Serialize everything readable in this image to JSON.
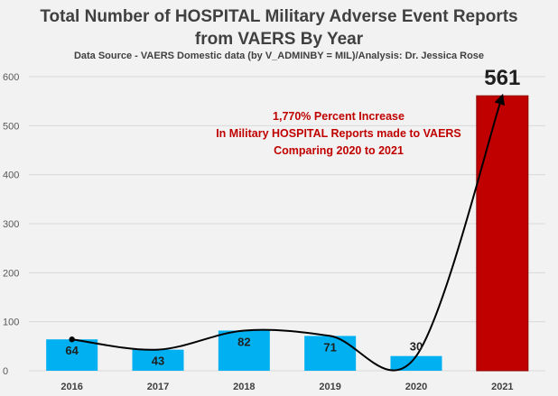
{
  "chart_data": {
    "type": "bar",
    "title_line1": "Total Number of HOSPITAL Military Adverse Event Reports",
    "title_line2": "from VAERS By Year",
    "subtitle": "Data Source - VAERS Domestic data (by V_ADMINBY = MIL)/Analysis: Dr. Jessica Rose",
    "categories": [
      "2016",
      "2017",
      "2018",
      "2019",
      "2020",
      "2021"
    ],
    "series": [
      {
        "values": [
          64,
          43,
          82,
          71,
          30,
          561
        ]
      }
    ],
    "data_labels": [
      "64",
      "43",
      "82",
      "71",
      "30",
      "561"
    ],
    "ylim": [
      0,
      600
    ],
    "yticks": [
      0,
      100,
      200,
      300,
      400,
      500,
      600
    ],
    "grid": true,
    "colors": {
      "bar": "#00b0f0",
      "highlight_bar": "#c00000",
      "highlight_bar_edge": "#8b0000",
      "annotation": "#c00000",
      "curve": "#000000",
      "grid": "#d9d9d9"
    },
    "annotation": [
      "1,770% Percent Increase",
      "In Military HOSPITAL Reports made to VAERS",
      "Comparing 2020 to 2021"
    ]
  }
}
